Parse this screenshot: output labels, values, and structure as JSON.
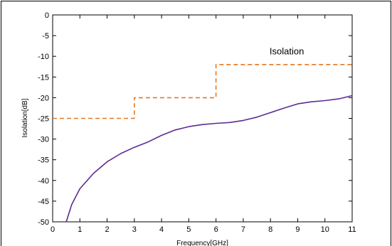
{
  "chart_data": {
    "type": "line",
    "title": "",
    "xlabel": "Frequency[GHz]",
    "ylabel": "Isolation[dB]",
    "xlim": [
      0,
      11
    ],
    "ylim": [
      -50,
      0
    ],
    "xticks": [
      0,
      1,
      2,
      3,
      4,
      5,
      6,
      7,
      8,
      9,
      10,
      11
    ],
    "yticks": [
      0,
      -5,
      -10,
      -15,
      -20,
      -25,
      -30,
      -35,
      -40,
      -45,
      -50
    ],
    "grid": false,
    "annotations": [
      {
        "text": "Isolation",
        "x": 8.6,
        "y": -9.5
      }
    ],
    "series": [
      {
        "style": "dashed",
        "color": "#E87722",
        "x": [
          0,
          3,
          3,
          6,
          6,
          11
        ],
        "y": [
          -25,
          -25,
          -20,
          -20,
          -12,
          -12
        ]
      },
      {
        "style": "solid",
        "color": "#5B2C91",
        "x": [
          0.5,
          0.7,
          1.0,
          1.5,
          2.0,
          2.5,
          3.0,
          3.5,
          4.0,
          4.5,
          5.0,
          5.5,
          6.0,
          6.5,
          7.0,
          7.5,
          8.0,
          8.5,
          9.0,
          9.5,
          10.0,
          10.5,
          11.0
        ],
        "y": [
          -50,
          -45.8,
          -42,
          -38.3,
          -35.5,
          -33.5,
          -32,
          -30.7,
          -29.1,
          -27.8,
          -27,
          -26.5,
          -26.2,
          -26,
          -25.5,
          -24.7,
          -23.6,
          -22.5,
          -21.5,
          -21,
          -20.7,
          -20.3,
          -19.5
        ]
      }
    ]
  }
}
